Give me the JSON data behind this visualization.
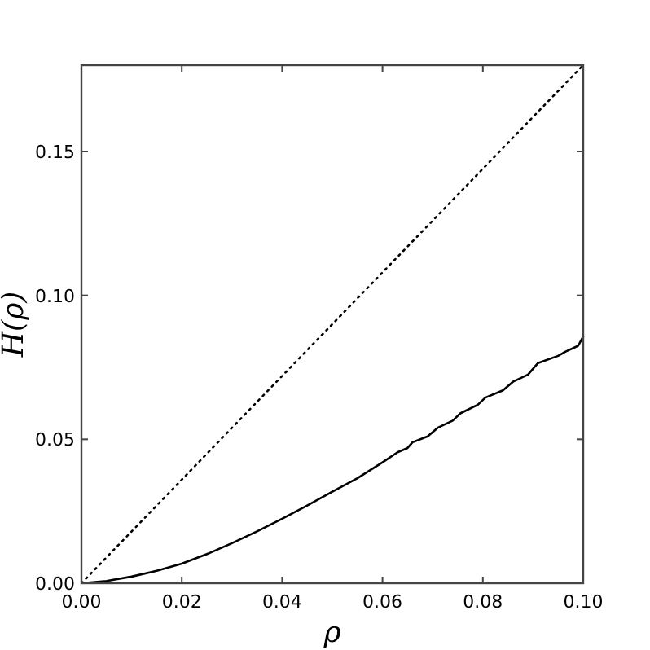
{
  "chart_data": {
    "type": "line",
    "xlabel": "ρ",
    "ylabel": "H(ρ)",
    "xlim": [
      0,
      0.1
    ],
    "ylim": [
      0,
      0.18
    ],
    "xticks": [
      {
        "value": 0,
        "label": "0.00"
      },
      {
        "value": 0.02,
        "label": "0.02"
      },
      {
        "value": 0.04,
        "label": "0.04"
      },
      {
        "value": 0.06,
        "label": "0.06"
      },
      {
        "value": 0.08,
        "label": "0.08"
      },
      {
        "value": 0.1,
        "label": "0.10"
      }
    ],
    "yticks": [
      {
        "value": 0,
        "label": "0.00"
      },
      {
        "value": 0.05,
        "label": "0.05"
      },
      {
        "value": 0.1,
        "label": "0.10"
      },
      {
        "value": 0.15,
        "label": "0.15"
      }
    ],
    "series": [
      {
        "color": "#000000",
        "line_style": "solid",
        "x": [
          0,
          0.005,
          0.01,
          0.015,
          0.02,
          0.025,
          0.03,
          0.035,
          0.04,
          0.045,
          0.05,
          0.055,
          0.06,
          0.063,
          0.065,
          0.066,
          0.069,
          0.071,
          0.074,
          0.0755,
          0.079,
          0.0805,
          0.084,
          0.086,
          0.089,
          0.091,
          0.095,
          0.0965,
          0.099,
          0.1
        ],
        "values": [
          0,
          0.0008,
          0.0023,
          0.0043,
          0.0068,
          0.0101,
          0.0139,
          0.018,
          0.0224,
          0.027,
          0.0318,
          0.0365,
          0.042,
          0.0455,
          0.047,
          0.049,
          0.051,
          0.054,
          0.0565,
          0.059,
          0.062,
          0.0645,
          0.067,
          0.07,
          0.0725,
          0.0765,
          0.079,
          0.0805,
          0.0825,
          0.0857
        ]
      },
      {
        "color": "#000000",
        "line_style": "dotted",
        "x": [
          0,
          0.1
        ],
        "values": [
          0,
          0.18
        ]
      }
    ]
  }
}
